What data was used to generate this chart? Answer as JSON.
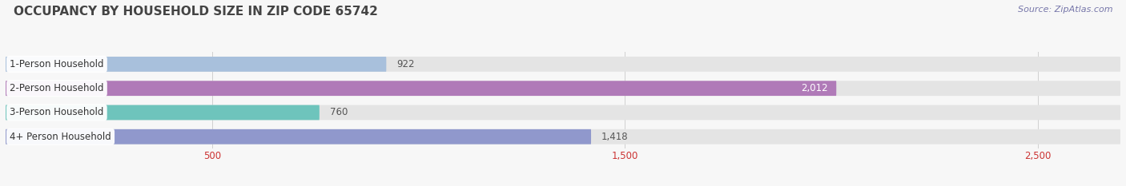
{
  "title": "OCCUPANCY BY HOUSEHOLD SIZE IN ZIP CODE 65742",
  "source": "Source: ZipAtlas.com",
  "categories": [
    "1-Person Household",
    "2-Person Household",
    "3-Person Household",
    "4+ Person Household"
  ],
  "values": [
    922,
    2012,
    760,
    1418
  ],
  "bar_colors": [
    "#a8c0dc",
    "#b07ab8",
    "#6ec4bc",
    "#9098cc"
  ],
  "label_colors": [
    "#555555",
    "#ffffff",
    "#555555",
    "#555555"
  ],
  "xlim": [
    0,
    2700
  ],
  "xticks": [
    500,
    1500,
    2500
  ],
  "background_color": "#f7f7f7",
  "bar_bg_color": "#e4e4e4",
  "title_fontsize": 11,
  "label_fontsize": 8.5,
  "value_fontsize": 8.5,
  "source_fontsize": 8,
  "bar_height": 0.62,
  "bar_gap": 0.18
}
